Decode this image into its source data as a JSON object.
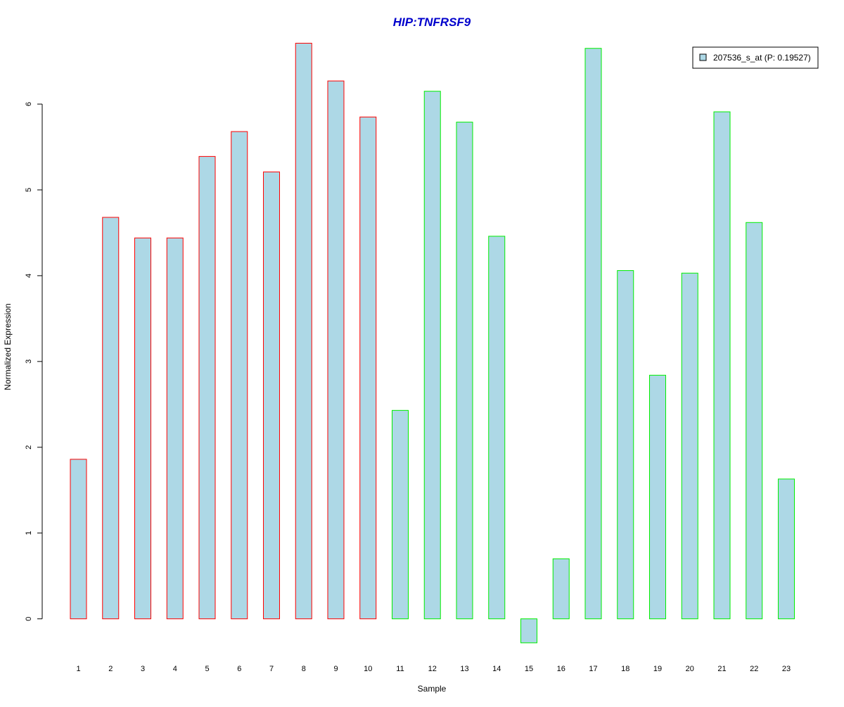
{
  "chart_data": {
    "type": "bar",
    "title": "HIP:TNFRSF9",
    "xlabel": "Sample",
    "ylabel": "Normalized Expression",
    "categories": [
      "1",
      "2",
      "3",
      "4",
      "5",
      "6",
      "7",
      "8",
      "9",
      "10",
      "11",
      "12",
      "13",
      "14",
      "15",
      "16",
      "17",
      "18",
      "19",
      "20",
      "21",
      "22",
      "23"
    ],
    "series": [
      {
        "name": "207536_s_at (P: 0.19527)",
        "values": [
          1.86,
          4.68,
          4.44,
          4.44,
          5.39,
          5.68,
          5.21,
          6.71,
          6.27,
          5.85,
          2.43,
          6.15,
          5.79,
          4.46,
          -0.28,
          0.7,
          6.65,
          4.06,
          2.84,
          4.03,
          5.91,
          4.62,
          1.63
        ]
      }
    ],
    "group_edge_colors": [
      "#ff0000",
      "#ff0000",
      "#ff0000",
      "#ff0000",
      "#ff0000",
      "#ff0000",
      "#ff0000",
      "#ff0000",
      "#ff0000",
      "#ff0000",
      "#00ee00",
      "#00ee00",
      "#00ee00",
      "#00ee00",
      "#00ee00",
      "#00ee00",
      "#00ee00",
      "#00ee00",
      "#00ee00",
      "#00ee00",
      "#00ee00",
      "#00ee00",
      "#00ee00"
    ],
    "yticks": [
      0,
      1,
      2,
      3,
      4,
      5,
      6
    ],
    "ylim": [
      -0.47,
      6.82
    ],
    "grid": false,
    "legend_position": "top-right",
    "colors": {
      "bar_fill": "#add8e6",
      "title": "#0000cc",
      "legend_border": "#000000"
    }
  }
}
